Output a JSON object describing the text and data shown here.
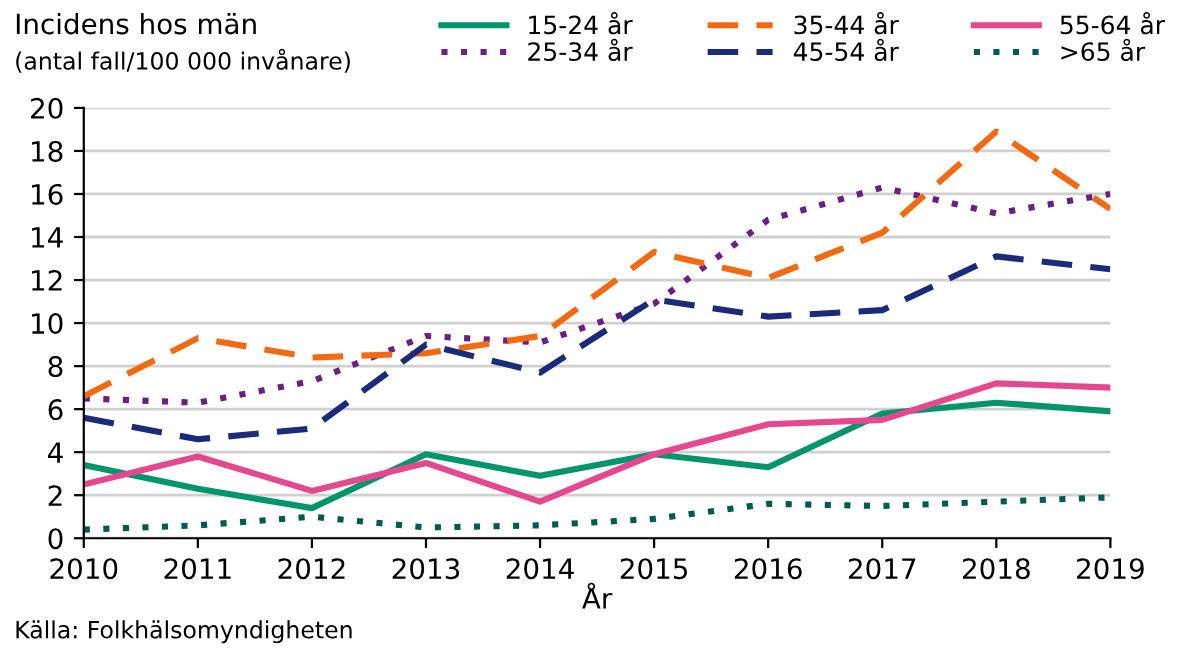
{
  "chart_data": {
    "type": "line",
    "title": "Incidens hos män",
    "subtitle": "(antal fall/100 000 invånare)",
    "xlabel": "År",
    "annotations": [
      "Källa: Folkhälsomyndigheten"
    ],
    "x": [
      2010,
      2011,
      2012,
      2013,
      2014,
      2015,
      2016,
      2017,
      2018,
      2019
    ],
    "series": [
      {
        "name": "15-24 år",
        "color": "#00956b",
        "line_style": "solid",
        "values": [
          3.4,
          2.3,
          1.4,
          3.9,
          2.9,
          3.9,
          3.3,
          5.8,
          6.3,
          5.9
        ]
      },
      {
        "name": "25-34 år",
        "color": "#6b1e83",
        "line_style": "dotted",
        "values": [
          6.5,
          6.3,
          7.3,
          9.4,
          9.1,
          10.9,
          14.8,
          16.3,
          15.1,
          16.0
        ]
      },
      {
        "name": "35-44 år",
        "color": "#f26a12",
        "line_style": "dashed",
        "values": [
          6.6,
          9.3,
          8.4,
          8.6,
          9.4,
          13.3,
          12.1,
          14.2,
          18.9,
          15.3
        ]
      },
      {
        "name": "45-54 år",
        "color": "#1b2a7a",
        "line_style": "dashed",
        "values": [
          5.6,
          4.6,
          5.1,
          9.0,
          7.7,
          11.1,
          10.3,
          10.6,
          13.1,
          12.5
        ]
      },
      {
        "name": "55-64 år",
        "color": "#e5488f",
        "line_style": "solid",
        "values": [
          2.5,
          3.8,
          2.2,
          3.5,
          1.7,
          3.9,
          5.3,
          5.5,
          7.2,
          7.0
        ]
      },
      {
        "name": ">65 år",
        "color": "#005c4e",
        "line_style": "dotted",
        "values": [
          0.4,
          0.6,
          1.0,
          0.5,
          0.6,
          0.9,
          1.6,
          1.5,
          1.7,
          1.9
        ]
      }
    ],
    "xlim": [
      2010,
      2019
    ],
    "xticks": [
      2010,
      2011,
      2012,
      2013,
      2014,
      2015,
      2016,
      2017,
      2018,
      2019
    ],
    "ylim": [
      0,
      20
    ],
    "yticks": [
      0,
      2,
      4,
      6,
      8,
      10,
      12,
      14,
      16,
      18,
      20
    ],
    "grid": "y",
    "legend": "top right",
    "marker": "none"
  }
}
